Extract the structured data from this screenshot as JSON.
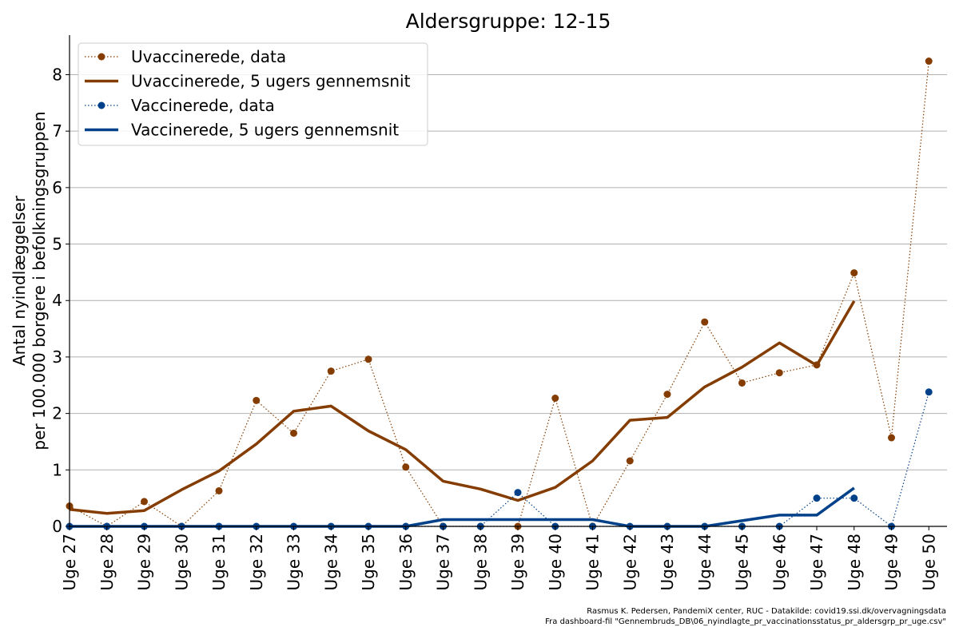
{
  "chart_data": {
    "type": "line",
    "title": "Aldersgruppe: 12-15",
    "ylabel_lines": [
      "Antal nyindlæggelser",
      "per 100.000 borgere i befolkningsgruppen"
    ],
    "xlabel": "",
    "categories": [
      "Uge 27",
      "Uge 28",
      "Uge 29",
      "Uge 30",
      "Uge 31",
      "Uge 32",
      "Uge 33",
      "Uge 34",
      "Uge 35",
      "Uge 36",
      "Uge 37",
      "Uge 38",
      "Uge 39",
      "Uge 40",
      "Uge 41",
      "Uge 42",
      "Uge 43",
      "Uge 44",
      "Uge 45",
      "Uge 46",
      "Uge 47",
      "Uge 48",
      "Uge 49",
      "Uge 50"
    ],
    "ylim": [
      0,
      8.7
    ],
    "yticks": [
      0,
      1,
      2,
      3,
      4,
      5,
      6,
      7,
      8
    ],
    "grid": "y",
    "legend_position": "top-left",
    "series": [
      {
        "name": "Uvaccinerede, data",
        "style": "dotted-markers",
        "color": "#843c00",
        "values": [
          0.36,
          0.0,
          0.44,
          0.0,
          0.63,
          2.23,
          1.65,
          2.75,
          2.96,
          1.05,
          0.0,
          0.0,
          0.0,
          2.27,
          0.0,
          1.16,
          2.34,
          3.62,
          2.54,
          2.72,
          2.86,
          4.49,
          1.57,
          8.24
        ]
      },
      {
        "name": "Uvaccinerede, 5 ugers gennemsnit",
        "style": "solid",
        "color": "#843c00",
        "values": [
          0.3,
          0.23,
          0.28,
          0.65,
          0.98,
          1.46,
          2.04,
          2.13,
          1.69,
          1.36,
          0.8,
          0.66,
          0.46,
          0.69,
          1.16,
          1.88,
          1.93,
          2.47,
          2.82,
          3.25,
          2.85,
          3.99,
          null,
          null
        ]
      },
      {
        "name": "Vaccinerede, data",
        "style": "dotted-markers",
        "color": "#00418a",
        "values": [
          0.0,
          0.0,
          0.0,
          0.0,
          0.0,
          0.0,
          0.0,
          0.0,
          0.0,
          0.0,
          0.0,
          0.0,
          0.6,
          0.0,
          0.0,
          0.0,
          0.0,
          0.0,
          0.0,
          0.0,
          0.5,
          0.5,
          0.0,
          2.38
        ]
      },
      {
        "name": "Vaccinerede, 5 ugers gennemsnit",
        "style": "solid",
        "color": "#00418a",
        "values": [
          0.0,
          0.0,
          0.0,
          0.0,
          0.0,
          0.0,
          0.0,
          0.0,
          0.0,
          0.0,
          0.12,
          0.12,
          0.12,
          0.12,
          0.12,
          0.0,
          0.0,
          0.0,
          0.1,
          0.2,
          0.2,
          0.68,
          null,
          null
        ]
      }
    ]
  },
  "credit": {
    "line1": "Rasmus K. Pedersen, PandemiX center, RUC - Datakilde: covid19.ssi.dk/overvagningsdata",
    "line2": "Fra dashboard-fil \"Gennembruds_DB\\06_nyindlagte_pr_vaccinationsstatus_pr_aldersgrp_pr_uge.csv\""
  }
}
